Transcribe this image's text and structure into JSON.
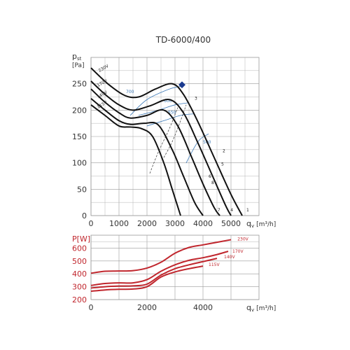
{
  "chart_data": [
    {
      "type": "line",
      "title": "TD-6000/400",
      "ylabel": "pst",
      "ylabel_sub": "st",
      "ylabel_unit": "[Pa]",
      "xlabel": "qv [m³/h]",
      "xlabel_sub": "v",
      "xlabel_unit": "[m³/h]",
      "xlim": [
        0,
        6000
      ],
      "ylim": [
        0,
        300
      ],
      "x_ticks": [
        0,
        1000,
        2000,
        3000,
        4000,
        5000
      ],
      "y_ticks": [
        0,
        50,
        100,
        150,
        200,
        250
      ],
      "grid": true,
      "series": [
        {
          "name": "230V",
          "label_at": [
            300,
            272
          ],
          "label_angle": -30,
          "x": [
            0,
            600,
            1200,
            1700,
            2300,
            2900,
            3300,
            3800,
            4400,
            5000,
            5400
          ],
          "y": [
            280,
            250,
            228,
            225,
            240,
            250,
            230,
            180,
            110,
            40,
            0
          ]
        },
        {
          "name": "170V",
          "label_at": [
            250,
            244
          ],
          "label_angle": -30,
          "x": [
            0,
            500,
            1000,
            1500,
            2100,
            2800,
            3300,
            3800,
            4300,
            4800,
            5000
          ],
          "y": [
            255,
            230,
            210,
            200,
            208,
            220,
            195,
            140,
            80,
            20,
            0
          ]
        },
        {
          "name": "140V",
          "label_at": [
            250,
            222
          ],
          "label_angle": -30,
          "x": [
            0,
            500,
            1000,
            1400,
            2000,
            2600,
            3100,
            3600,
            4000,
            4400,
            4600
          ],
          "y": [
            240,
            215,
            195,
            185,
            190,
            200,
            170,
            110,
            60,
            15,
            0
          ]
        },
        {
          "name": "115V",
          "label_at": [
            250,
            203
          ],
          "label_angle": -30,
          "x": [
            0,
            500,
            1000,
            1400,
            1900,
            2400,
            2900,
            3300,
            3700,
            4000
          ],
          "y": [
            222,
            200,
            180,
            173,
            175,
            172,
            125,
            75,
            25,
            0
          ]
        },
        {
          "name": "",
          "x": [
            0,
            500,
            1000,
            1400,
            1800,
            2200,
            2600,
            2900,
            3200
          ],
          "y": [
            210,
            190,
            170,
            168,
            165,
            150,
            100,
            50,
            0
          ]
        }
      ],
      "system_curves": [
        {
          "label": "700",
          "label_at": [
            1250,
            232
          ],
          "x": [
            1400,
            2000,
            2800,
            3200
          ],
          "y": [
            190,
            220,
            240,
            245
          ]
        },
        {
          "label": "600",
          "label_at": [
            2600,
            215
          ],
          "x": [
            1700,
            2400,
            3000,
            3500
          ],
          "y": [
            190,
            200,
            210,
            214
          ]
        },
        {
          "label": "550",
          "label_at": [
            2750,
            193
          ],
          "x": [
            2000,
            2600,
            3200,
            3700
          ],
          "y": [
            170,
            180,
            190,
            193
          ]
        },
        {
          "label": "500",
          "label_at": [
            4000,
            137
          ],
          "x": [
            3400,
            3700,
            3900,
            4200
          ],
          "y": [
            100,
            130,
            145,
            155
          ]
        }
      ],
      "dashed_curves": [
        {
          "x": [
            2100,
            2400,
            2800,
            3100
          ],
          "y": [
            80,
            120,
            165,
            205
          ]
        },
        {
          "x": [
            2600,
            2900,
            3200,
            3400
          ],
          "y": [
            110,
            140,
            180,
            210
          ]
        }
      ],
      "operating_point": {
        "x": 3250,
        "y": 248,
        "color": "#1a3a8f"
      },
      "curve_numbers": [
        {
          "text": "1",
          "at": [
            5550,
            8
          ]
        },
        {
          "text": "2",
          "at": [
            4700,
            120
          ]
        },
        {
          "text": "3",
          "at": [
            3700,
            220
          ]
        },
        {
          "text": "4",
          "at": [
            4980,
            8
          ]
        },
        {
          "text": "5",
          "at": [
            4650,
            95
          ]
        },
        {
          "text": "6",
          "at": [
            4200,
            72
          ]
        },
        {
          "text": "7",
          "at": [
            4520,
            8
          ]
        },
        {
          "text": "8",
          "at": [
            4300,
            60
          ]
        }
      ]
    },
    {
      "type": "line",
      "title": "",
      "ylabel": "P[W]",
      "xlabel": "qv [m³/h]",
      "xlabel_sub": "v",
      "xlabel_unit": "[m³/h]",
      "xlim": [
        0,
        6000
      ],
      "ylim": [
        200,
        700
      ],
      "x_ticks": [
        0,
        2000,
        4000
      ],
      "y_ticks": [
        200,
        300,
        400,
        500,
        600
      ],
      "grid": true,
      "series": [
        {
          "name": "230V",
          "color": "#c0262d",
          "label_at": [
            5230,
            660
          ],
          "x": [
            0,
            500,
            1000,
            1500,
            2000,
            2500,
            3000,
            3500,
            4000,
            4500,
            5000
          ],
          "y": [
            405,
            420,
            422,
            425,
            445,
            490,
            560,
            605,
            625,
            645,
            665
          ]
        },
        {
          "name": "170V",
          "color": "#c0262d",
          "label_at": [
            5050,
            565
          ],
          "x": [
            0,
            500,
            1000,
            1500,
            2000,
            2500,
            3000,
            3500,
            4000,
            4500,
            4900
          ],
          "y": [
            310,
            325,
            330,
            330,
            355,
            420,
            470,
            505,
            525,
            550,
            575
          ]
        },
        {
          "name": "140V",
          "color": "#c0262d",
          "label_at": [
            4750,
            520
          ],
          "x": [
            0,
            500,
            1000,
            1500,
            2000,
            2500,
            3000,
            3500,
            4000,
            4500
          ],
          "y": [
            290,
            300,
            305,
            307,
            320,
            390,
            440,
            470,
            495,
            520
          ]
        },
        {
          "name": "115V",
          "color": "#c0262d",
          "label_at": [
            4200,
            462
          ],
          "x": [
            0,
            500,
            1000,
            1500,
            2000,
            2500,
            3000,
            3500,
            4000
          ],
          "y": [
            265,
            275,
            280,
            282,
            300,
            375,
            415,
            440,
            460
          ]
        }
      ]
    }
  ]
}
